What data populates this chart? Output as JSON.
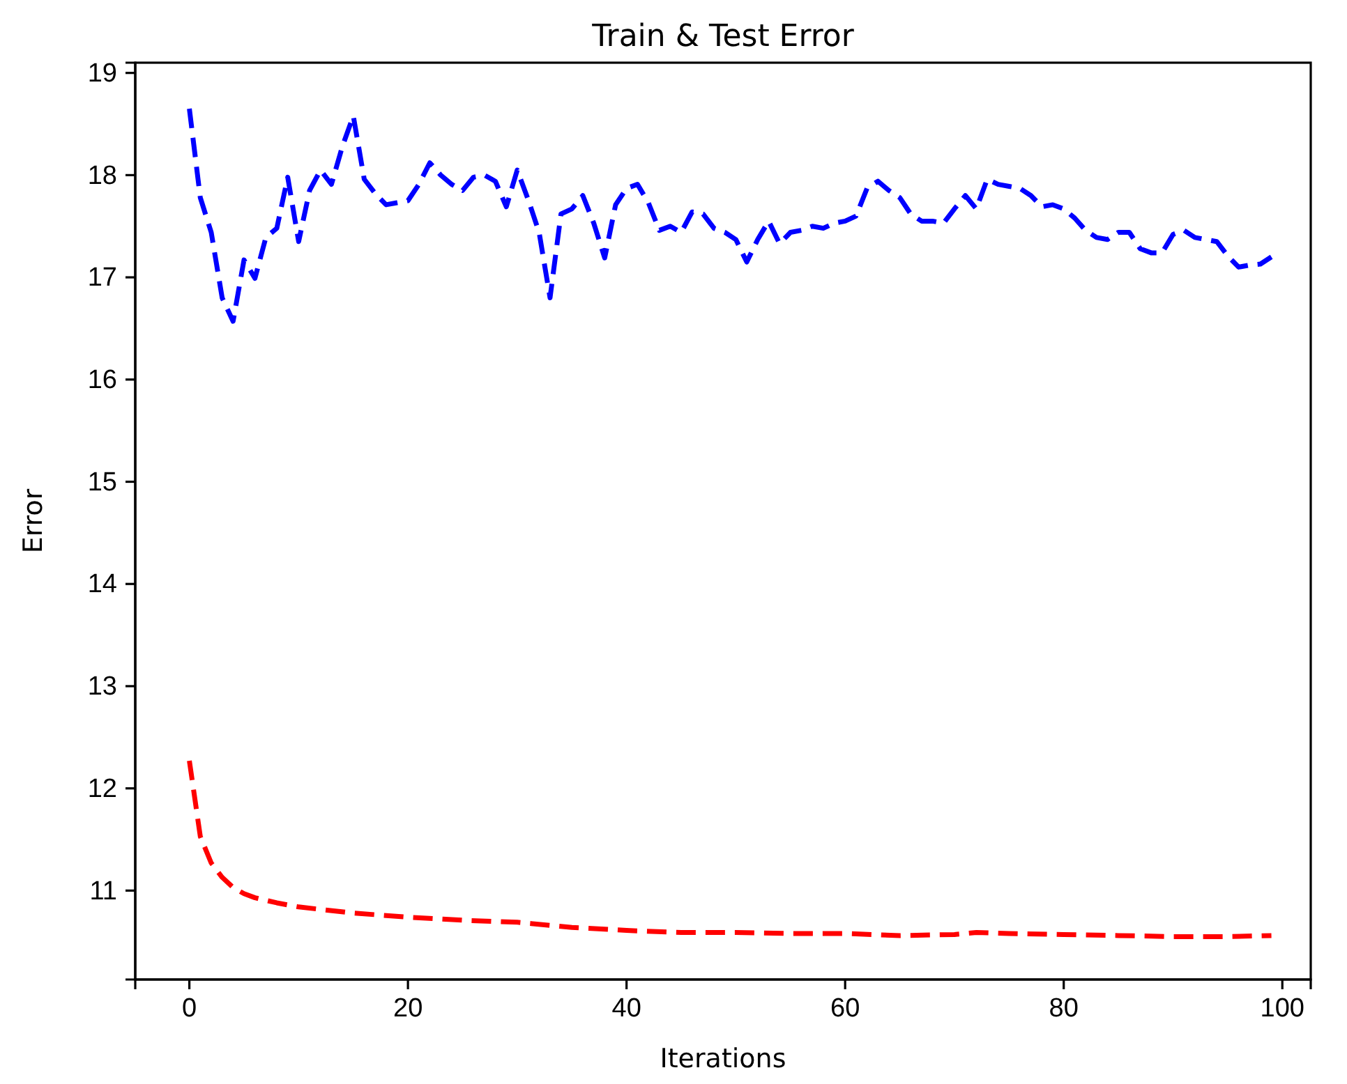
{
  "chart_data": {
    "type": "line",
    "title": "Train & Test Error",
    "xlabel": "Iterations",
    "ylabel": "Error",
    "xlim": [
      -4.95,
      102.6
    ],
    "ylim": [
      10.13,
      19.1
    ],
    "xticks": [
      0,
      20,
      40,
      60,
      80,
      100
    ],
    "yticks": [
      11,
      12,
      13,
      14,
      15,
      16,
      17,
      18,
      19
    ],
    "grid": false,
    "line_style": "dashed",
    "marker": "none",
    "series": [
      {
        "color": "#0000ff",
        "x": [
          0,
          1,
          2,
          3,
          4,
          5,
          6,
          7,
          8,
          9,
          10,
          11,
          12,
          13,
          14,
          15,
          16,
          17,
          18,
          19,
          20,
          21,
          22,
          23,
          24,
          25,
          26,
          27,
          28,
          29,
          30,
          31,
          32,
          33,
          34,
          35,
          36,
          37,
          38,
          39,
          40,
          41,
          42,
          43,
          44,
          45,
          46,
          47,
          48,
          49,
          50,
          51,
          52,
          53,
          54,
          55,
          56,
          57,
          58,
          59,
          60,
          61,
          62,
          63,
          64,
          65,
          66,
          67,
          68,
          69,
          70,
          71,
          72,
          73,
          74,
          75,
          76,
          77,
          78,
          79,
          80,
          81,
          82,
          83,
          84,
          85,
          86,
          87,
          88,
          89,
          90,
          91,
          92,
          93,
          94,
          95,
          96,
          97,
          98,
          99
        ],
        "values": [
          18.65,
          17.78,
          17.44,
          16.8,
          16.57,
          17.17,
          16.99,
          17.39,
          17.48,
          17.98,
          17.35,
          17.85,
          18.05,
          17.91,
          18.28,
          18.58,
          17.96,
          17.82,
          17.71,
          17.73,
          17.75,
          17.91,
          18.12,
          18.0,
          17.91,
          17.85,
          17.98,
          18.0,
          17.94,
          17.69,
          18.05,
          17.76,
          17.44,
          16.8,
          17.62,
          17.67,
          17.8,
          17.53,
          17.19,
          17.71,
          17.87,
          17.91,
          17.73,
          17.46,
          17.5,
          17.44,
          17.64,
          17.62,
          17.48,
          17.44,
          17.37,
          17.15,
          17.37,
          17.55,
          17.33,
          17.44,
          17.46,
          17.5,
          17.48,
          17.53,
          17.55,
          17.6,
          17.87,
          17.94,
          17.85,
          17.78,
          17.62,
          17.55,
          17.55,
          17.53,
          17.67,
          17.8,
          17.67,
          17.96,
          17.91,
          17.89,
          17.87,
          17.8,
          17.69,
          17.71,
          17.67,
          17.58,
          17.46,
          17.39,
          17.37,
          17.44,
          17.44,
          17.28,
          17.24,
          17.24,
          17.42,
          17.46,
          17.39,
          17.37,
          17.35,
          17.21,
          17.1,
          17.12,
          17.13,
          17.2
        ]
      },
      {
        "color": "#ff0000",
        "x": [
          0,
          1,
          2,
          3,
          4,
          5,
          6,
          8,
          10,
          15,
          20,
          25,
          30,
          35,
          40,
          45,
          50,
          55,
          60,
          65,
          70,
          72,
          75,
          80,
          85,
          90,
          95,
          99
        ],
        "values": [
          12.27,
          11.53,
          11.27,
          11.13,
          11.03,
          10.97,
          10.93,
          10.88,
          10.84,
          10.78,
          10.74,
          10.71,
          10.69,
          10.64,
          10.61,
          10.59,
          10.59,
          10.58,
          10.58,
          10.56,
          10.57,
          10.59,
          10.58,
          10.57,
          10.56,
          10.55,
          10.55,
          10.56
        ]
      }
    ]
  }
}
